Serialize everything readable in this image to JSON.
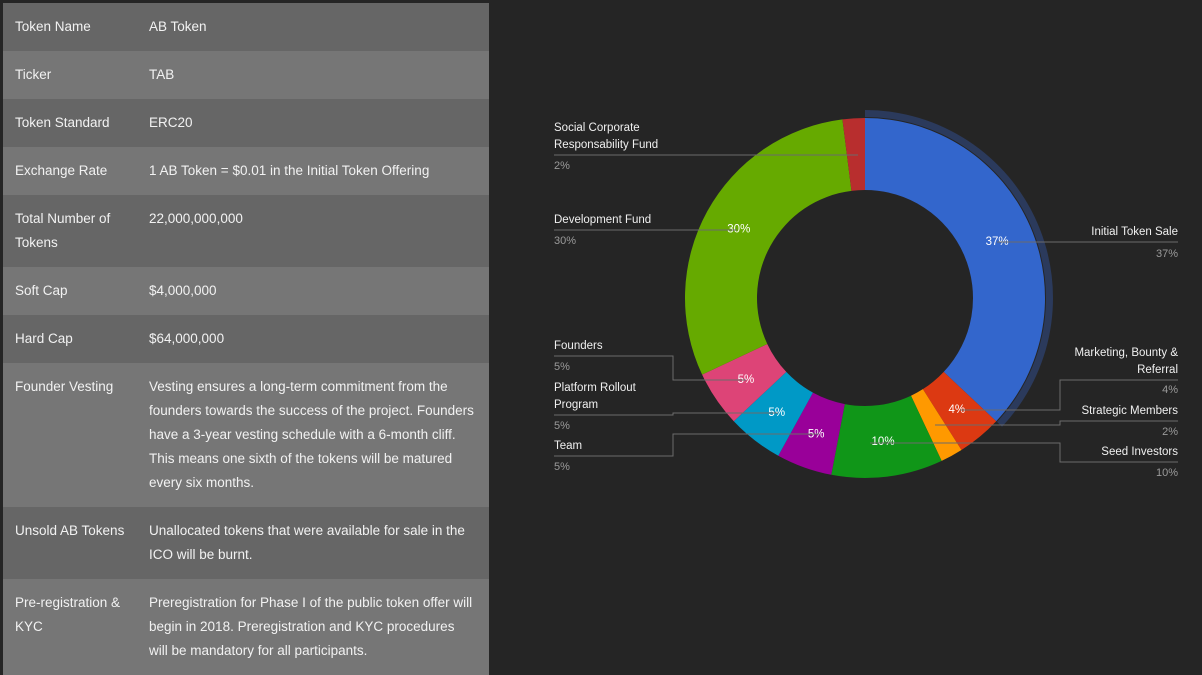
{
  "table": [
    {
      "key": "Token Name",
      "value": "AB Token"
    },
    {
      "key": "Ticker",
      "value": "TAB"
    },
    {
      "key": "Token Standard",
      "value": "ERC20"
    },
    {
      "key": "Exchange Rate",
      "value": "1 AB Token = $0.01 in the Initial Token Offering"
    },
    {
      "key": "Total Number of Tokens",
      "value": "22,000,000,000"
    },
    {
      "key": "Soft Cap",
      "value": "$4,000,000"
    },
    {
      "key": "Hard Cap",
      "value": "$64,000,000"
    },
    {
      "key": "Founder Vesting",
      "value": "Vesting ensures a long-term commitment from the founders towards the success of the project. Founders have a 3-year vesting schedule with a 6-month cliff. This means one sixth of the tokens will be matured every six months."
    },
    {
      "key": "Unsold AB Tokens",
      "value": "Unallocated tokens that were available for sale in the ICO will be burnt."
    },
    {
      "key": "Pre-registration & KYC",
      "value": "Preregistration for Phase I of the public token offer will begin in 2018. Preregistration and KYC procedures will be mandatory for all participants."
    }
  ],
  "chart_data": {
    "type": "pie",
    "donut": true,
    "highlighted": "Initial Token Sale",
    "slices": [
      {
        "name": "Initial Token Sale",
        "value": 37,
        "label": "37%",
        "color": "#3366cc"
      },
      {
        "name": "Marketing, Bounty & Referral",
        "value": 4,
        "label": "4%",
        "color": "#dc3912"
      },
      {
        "name": "Strategic Members",
        "value": 2,
        "label": "2%",
        "color": "#ff9900"
      },
      {
        "name": "Seed Investors",
        "value": 10,
        "label": "10%",
        "color": "#109618"
      },
      {
        "name": "Team",
        "value": 5,
        "label": "5%",
        "color": "#990099"
      },
      {
        "name": "Platform Rollout Program",
        "value": 5,
        "label": "5%",
        "color": "#0099c6"
      },
      {
        "name": "Founders",
        "value": 5,
        "label": "5%",
        "color": "#dd4477"
      },
      {
        "name": "Development Fund",
        "value": 30,
        "label": "30%",
        "color": "#66aa00"
      },
      {
        "name": "Social Corporate Responsability Fund",
        "value": 2,
        "label": "2%",
        "color": "#b82e2e"
      }
    ],
    "legend": {
      "social": {
        "line1": "Social Corporate",
        "line2": "Responsability Fund",
        "pct": "2%"
      },
      "dev": {
        "line1": "Development Fund",
        "pct": "30%"
      },
      "initial": {
        "line1": "Initial Token Sale",
        "pct": "37%"
      },
      "founders": {
        "line1": "Founders",
        "pct": "5%"
      },
      "platform": {
        "line1": "Platform Rollout",
        "line2": "Program",
        "pct": "5%"
      },
      "team": {
        "line1": "Team",
        "pct": "5%"
      },
      "marketing": {
        "line1": "Marketing, Bounty &",
        "line2": "Referral",
        "pct": "4%"
      },
      "strategic": {
        "line1": "Strategic Members",
        "pct": "2%"
      },
      "seed": {
        "line1": "Seed Investors",
        "pct": "10%"
      }
    }
  }
}
